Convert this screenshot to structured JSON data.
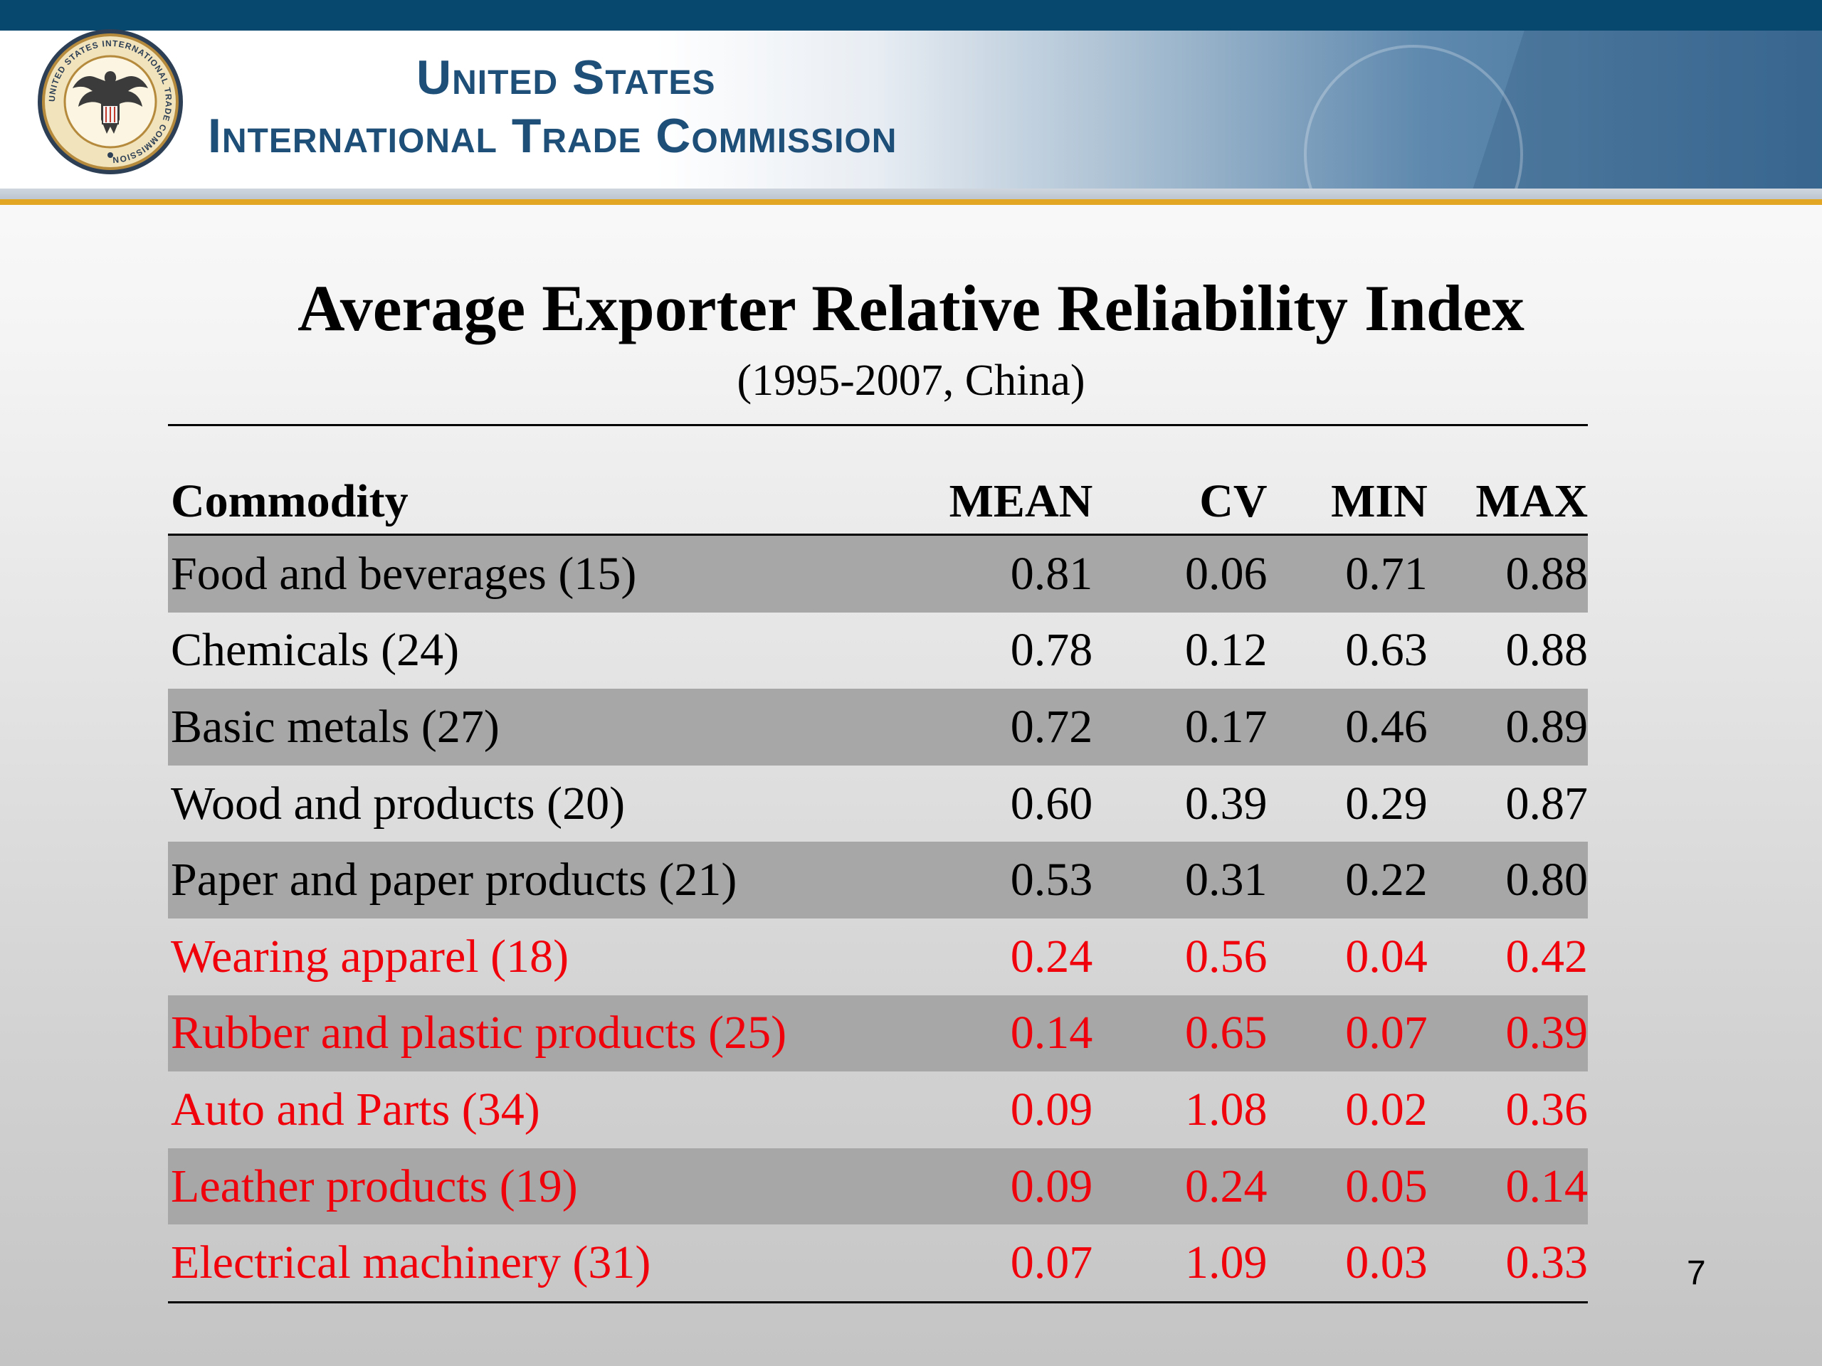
{
  "header": {
    "org_line1": "United States",
    "org_line2": "International Trade Commission",
    "seal_text": "UNITED STATES INTERNATIONAL TRADE COMMISSION"
  },
  "slide": {
    "title": "Average Exporter Relative Reliability Index",
    "subtitle": "(1995-2007, China)",
    "page_number": "7"
  },
  "table": {
    "headers": [
      "Commodity",
      "MEAN",
      "CV",
      "MIN",
      "MAX"
    ],
    "rows": [
      {
        "commodity": "Food and beverages (15)",
        "mean": "0.81",
        "cv": "0.06",
        "min": "0.71",
        "max": "0.88"
      },
      {
        "commodity": "Chemicals (24)",
        "mean": "0.78",
        "cv": "0.12",
        "min": "0.63",
        "max": "0.88"
      },
      {
        "commodity": "Basic metals (27)",
        "mean": "0.72",
        "cv": "0.17",
        "min": "0.46",
        "max": "0.89"
      },
      {
        "commodity": "Wood and products (20)",
        "mean": "0.60",
        "cv": "0.39",
        "min": "0.29",
        "max": "0.87"
      },
      {
        "commodity": "Paper and paper products (21)",
        "mean": "0.53",
        "cv": "0.31",
        "min": "0.22",
        "max": "0.80"
      },
      {
        "commodity": "Wearing apparel (18)",
        "mean": "0.24",
        "cv": "0.56",
        "min": "0.04",
        "max": "0.42"
      },
      {
        "commodity": "Rubber and plastic products (25)",
        "mean": "0.14",
        "cv": "0.65",
        "min": "0.07",
        "max": "0.39"
      },
      {
        "commodity": "Auto and Parts (34)",
        "mean": "0.09",
        "cv": "1.08",
        "min": "0.02",
        "max": "0.36"
      },
      {
        "commodity": "Leather products (19)",
        "mean": "0.09",
        "cv": "0.24",
        "min": "0.05",
        "max": "0.14"
      },
      {
        "commodity": "Electrical machinery (31)",
        "mean": "0.07",
        "cv": "1.09",
        "min": "0.03",
        "max": "0.33"
      }
    ]
  },
  "colors": {
    "top_bar": "#07486e",
    "org_text": "#1e4f78",
    "gold_rule": "#e3a624",
    "row_shade": "#a7a7a7",
    "highlight_text": "#f0000a"
  }
}
